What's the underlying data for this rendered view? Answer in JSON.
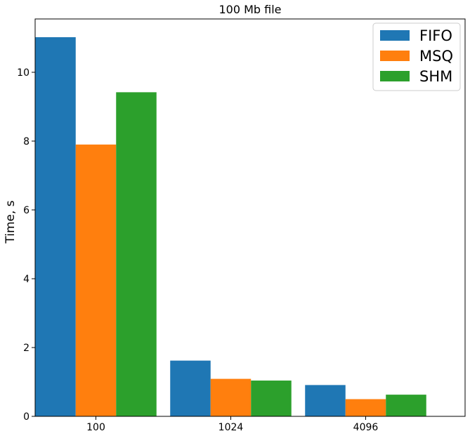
{
  "chart_data": {
    "type": "bar",
    "title": "100 Mb file",
    "xlabel": "",
    "ylabel": "Time, s",
    "categories": [
      "100",
      "1024",
      "4096"
    ],
    "ylim": [
      0,
      11.55
    ],
    "yticks": [
      0,
      2,
      4,
      6,
      8,
      10
    ],
    "grid": false,
    "legend_position": "top-right",
    "series": [
      {
        "name": "FIFO",
        "color": "#1f77b4",
        "values": [
          11.02,
          1.62,
          0.91
        ]
      },
      {
        "name": "MSQ",
        "color": "#ff7f0e",
        "values": [
          7.9,
          1.09,
          0.5
        ]
      },
      {
        "name": "SHM",
        "color": "#2ca02c",
        "values": [
          9.42,
          1.04,
          0.63
        ]
      }
    ]
  }
}
